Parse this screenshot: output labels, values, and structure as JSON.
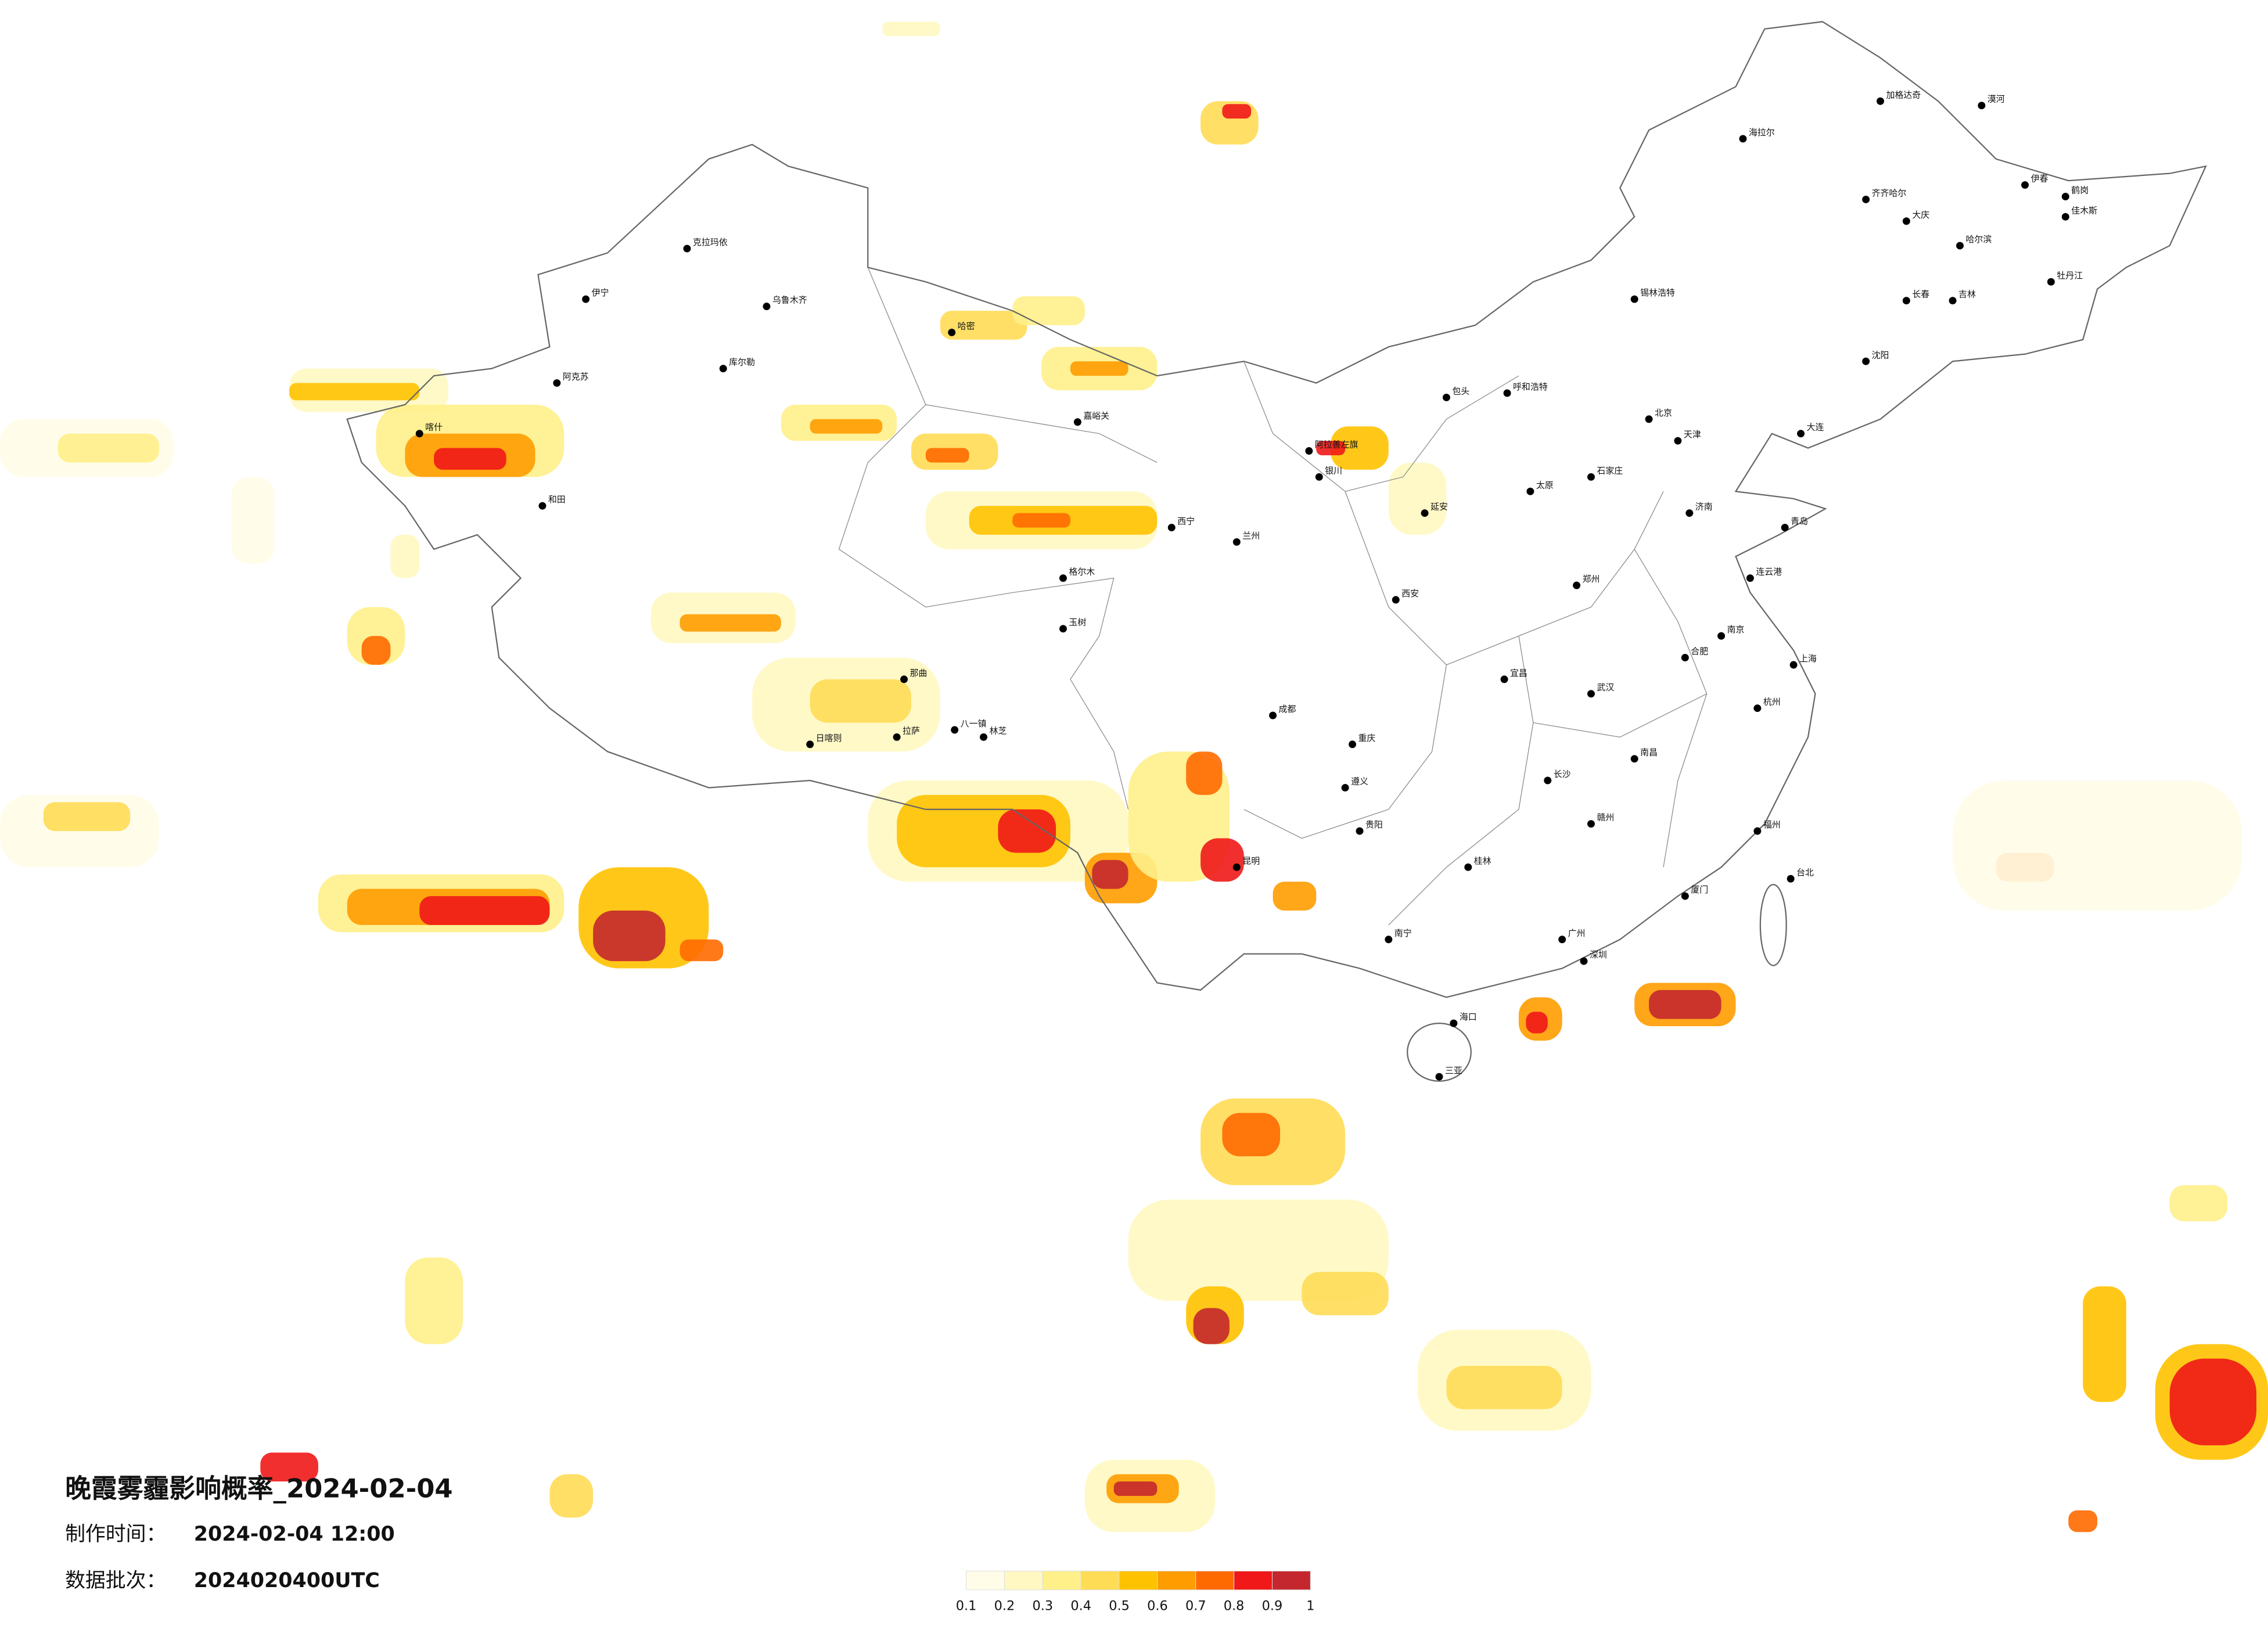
{
  "title": "晚霞雾霾影响概率_2024-02-04",
  "time_label": "制作时间：",
  "time_value": "2024-02-04 12:00",
  "batch_label": "数据批次：",
  "batch_value": "2024020400UTC",
  "legend": {
    "ticks": [
      0.1,
      0.2,
      0.3,
      0.4,
      0.5,
      0.6,
      0.7,
      0.8,
      0.9,
      1
    ],
    "colors": [
      "#fffde8",
      "#fff8c2",
      "#fff08a",
      "#ffdc55",
      "#ffc200",
      "#ff9c00",
      "#ff6a00",
      "#f01818",
      "#c4282e"
    ]
  },
  "cities": [
    "漠河",
    "加格达奇",
    "海拉尔",
    "齐齐哈尔",
    "大庆",
    "哈尔滨",
    "伊春",
    "鹤岗",
    "佳木斯",
    "牡丹江",
    "长春",
    "吉林",
    "沈阳",
    "大连",
    "锡林浩特",
    "呼和浩特",
    "包头",
    "北京",
    "天津",
    "石家庄",
    "太原",
    "济南",
    "青岛",
    "郑州",
    "西安",
    "兰州",
    "西宁",
    "银川",
    "南京",
    "上海",
    "杭州",
    "合肥",
    "武汉",
    "长沙",
    "南昌",
    "福州",
    "台北",
    "广州",
    "深圳",
    "海口",
    "三亚",
    "南宁",
    "贵阳",
    "昆明",
    "成都",
    "重庆",
    "拉萨",
    "日喀则",
    "林芝",
    "那曲",
    "乌鲁木齐",
    "克拉玛依",
    "伊宁",
    "阿克苏",
    "喀什",
    "和田",
    "哈密",
    "库尔勒",
    "格尔木",
    "嘉峪关",
    "玉树",
    "八一镇",
    "阿拉善左旗",
    "延安",
    "赣州",
    "厦门",
    "桂林",
    "遵义",
    "宜昌",
    "连云港"
  ]
}
